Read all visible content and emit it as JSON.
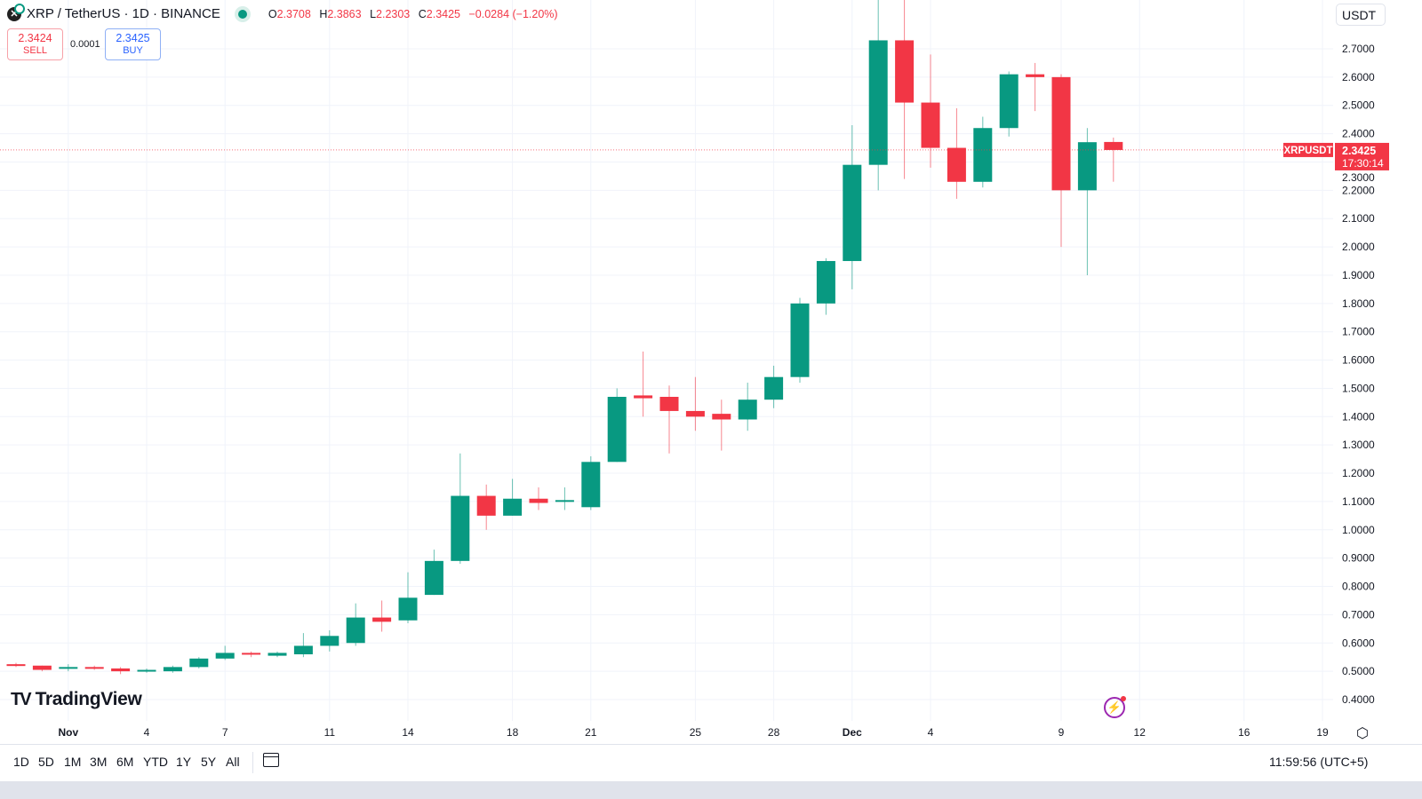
{
  "header": {
    "symbol": "XRP / TetherUS · 1D · BINANCE",
    "open_label": "O",
    "open": "2.3708",
    "high_label": "H",
    "high": "2.3863",
    "low_label": "L",
    "low": "2.2303",
    "close_label": "C",
    "close": "2.3425",
    "change": "−0.0284 (−1.20%)"
  },
  "trade": {
    "sell_price": "2.3424",
    "sell_label": "SELL",
    "spread": "0.0001",
    "buy_price": "2.3425",
    "buy_label": "BUY"
  },
  "currency": "USDT",
  "branding": "TradingView",
  "toolbar": {
    "ranges": [
      "1D",
      "5D",
      "1M",
      "3M",
      "6M",
      "YTD",
      "1Y",
      "5Y",
      "All"
    ],
    "clock": "11:59:56 (UTC+5)"
  },
  "colors": {
    "up": "#089981",
    "down": "#f23645",
    "grid": "#f0f3fa"
  },
  "chart_data": {
    "type": "candlestick",
    "symbol_label": "XRPUSDT",
    "last_price": "2.3425",
    "countdown": "17:30:14",
    "ylim": [
      0.4,
      2.7
    ],
    "y_ticks": [
      "2.7000",
      "2.6000",
      "2.5000",
      "2.4000",
      "2.3000",
      "2.2000",
      "2.1000",
      "2.0000",
      "1.9000",
      "1.8000",
      "1.7000",
      "1.6000",
      "1.5000",
      "1.4000",
      "1.3000",
      "1.2000",
      "1.1000",
      "1.0000",
      "0.9000",
      "0.8000",
      "0.7000",
      "0.6000",
      "0.5000",
      "0.4000"
    ],
    "x_ticks": [
      {
        "label": "Nov",
        "day": 2
      },
      {
        "label": "4",
        "day": 5
      },
      {
        "label": "7",
        "day": 8
      },
      {
        "label": "11",
        "day": 12
      },
      {
        "label": "14",
        "day": 15
      },
      {
        "label": "18",
        "day": 19
      },
      {
        "label": "21",
        "day": 22
      },
      {
        "label": "25",
        "day": 26
      },
      {
        "label": "28",
        "day": 29
      },
      {
        "label": "Dec",
        "day": 32
      },
      {
        "label": "4",
        "day": 35
      },
      {
        "label": "9",
        "day": 40
      },
      {
        "label": "12",
        "day": 43
      },
      {
        "label": "16",
        "day": 47
      },
      {
        "label": "19",
        "day": 50
      }
    ],
    "candles": [
      {
        "date": "Oct 30",
        "o": 0.525,
        "h": 0.53,
        "l": 0.515,
        "c": 0.52
      },
      {
        "date": "Oct 31",
        "o": 0.52,
        "h": 0.52,
        "l": 0.5,
        "c": 0.505
      },
      {
        "date": "Nov 1",
        "o": 0.51,
        "h": 0.525,
        "l": 0.5,
        "c": 0.515
      },
      {
        "date": "Nov 2",
        "o": 0.515,
        "h": 0.52,
        "l": 0.505,
        "c": 0.51
      },
      {
        "date": "Nov 3",
        "o": 0.51,
        "h": 0.515,
        "l": 0.49,
        "c": 0.5
      },
      {
        "date": "Nov 4",
        "o": 0.5,
        "h": 0.51,
        "l": 0.495,
        "c": 0.505
      },
      {
        "date": "Nov 5",
        "o": 0.5,
        "h": 0.52,
        "l": 0.495,
        "c": 0.515
      },
      {
        "date": "Nov 6",
        "o": 0.515,
        "h": 0.55,
        "l": 0.51,
        "c": 0.545
      },
      {
        "date": "Nov 7",
        "o": 0.545,
        "h": 0.59,
        "l": 0.54,
        "c": 0.565
      },
      {
        "date": "Nov 8",
        "o": 0.565,
        "h": 0.57,
        "l": 0.55,
        "c": 0.56
      },
      {
        "date": "Nov 9",
        "o": 0.555,
        "h": 0.57,
        "l": 0.55,
        "c": 0.565
      },
      {
        "date": "Nov 10",
        "o": 0.56,
        "h": 0.635,
        "l": 0.55,
        "c": 0.59
      },
      {
        "date": "Nov 11",
        "o": 0.59,
        "h": 0.645,
        "l": 0.57,
        "c": 0.625
      },
      {
        "date": "Nov 12",
        "o": 0.6,
        "h": 0.74,
        "l": 0.59,
        "c": 0.69
      },
      {
        "date": "Nov 13",
        "o": 0.69,
        "h": 0.75,
        "l": 0.64,
        "c": 0.675
      },
      {
        "date": "Nov 14",
        "o": 0.68,
        "h": 0.85,
        "l": 0.67,
        "c": 0.76
      },
      {
        "date": "Nov 15",
        "o": 0.77,
        "h": 0.93,
        "l": 0.77,
        "c": 0.89
      },
      {
        "date": "Nov 16",
        "o": 0.89,
        "h": 1.27,
        "l": 0.88,
        "c": 1.12
      },
      {
        "date": "Nov 17",
        "o": 1.12,
        "h": 1.16,
        "l": 1.0,
        "c": 1.05
      },
      {
        "date": "Nov 18",
        "o": 1.05,
        "h": 1.18,
        "l": 1.05,
        "c": 1.11
      },
      {
        "date": "Nov 19",
        "o": 1.11,
        "h": 1.15,
        "l": 1.07,
        "c": 1.095
      },
      {
        "date": "Nov 20",
        "o": 1.1,
        "h": 1.15,
        "l": 1.07,
        "c": 1.105
      },
      {
        "date": "Nov 21",
        "o": 1.08,
        "h": 1.26,
        "l": 1.07,
        "c": 1.24
      },
      {
        "date": "Nov 22",
        "o": 1.24,
        "h": 1.5,
        "l": 1.24,
        "c": 1.47
      },
      {
        "date": "Nov 23",
        "o": 1.475,
        "h": 1.63,
        "l": 1.4,
        "c": 1.465
      },
      {
        "date": "Nov 24",
        "o": 1.47,
        "h": 1.51,
        "l": 1.27,
        "c": 1.42
      },
      {
        "date": "Nov 25",
        "o": 1.42,
        "h": 1.54,
        "l": 1.35,
        "c": 1.4
      },
      {
        "date": "Nov 26",
        "o": 1.41,
        "h": 1.46,
        "l": 1.28,
        "c": 1.39
      },
      {
        "date": "Nov 27",
        "o": 1.39,
        "h": 1.52,
        "l": 1.35,
        "c": 1.46
      },
      {
        "date": "Nov 28",
        "o": 1.46,
        "h": 1.58,
        "l": 1.43,
        "c": 1.54
      },
      {
        "date": "Nov 29",
        "o": 1.54,
        "h": 1.82,
        "l": 1.52,
        "c": 1.8
      },
      {
        "date": "Nov 30",
        "o": 1.8,
        "h": 1.96,
        "l": 1.76,
        "c": 1.95
      },
      {
        "date": "Dec 1",
        "o": 1.95,
        "h": 2.43,
        "l": 1.85,
        "c": 2.29
      },
      {
        "date": "Dec 2",
        "o": 2.29,
        "h": 2.91,
        "l": 2.2,
        "c": 2.73
      },
      {
        "date": "Dec 3",
        "o": 2.73,
        "h": 2.91,
        "l": 2.24,
        "c": 2.51
      },
      {
        "date": "Dec 4",
        "o": 2.51,
        "h": 2.68,
        "l": 2.28,
        "c": 2.35
      },
      {
        "date": "Dec 5",
        "o": 2.35,
        "h": 2.49,
        "l": 2.17,
        "c": 2.23
      },
      {
        "date": "Dec 6",
        "o": 2.23,
        "h": 2.46,
        "l": 2.21,
        "c": 2.42
      },
      {
        "date": "Dec 7",
        "o": 2.42,
        "h": 2.62,
        "l": 2.39,
        "c": 2.61
      },
      {
        "date": "Dec 8",
        "o": 2.61,
        "h": 2.65,
        "l": 2.48,
        "c": 2.6
      },
      {
        "date": "Dec 9",
        "o": 2.6,
        "h": 2.61,
        "l": 2.0,
        "c": 2.2
      },
      {
        "date": "Dec 10",
        "o": 2.2,
        "h": 2.42,
        "l": 1.9,
        "c": 2.37
      },
      {
        "date": "Dec 11",
        "o": 2.3708,
        "h": 2.3863,
        "l": 2.2303,
        "c": 2.3425
      }
    ]
  }
}
